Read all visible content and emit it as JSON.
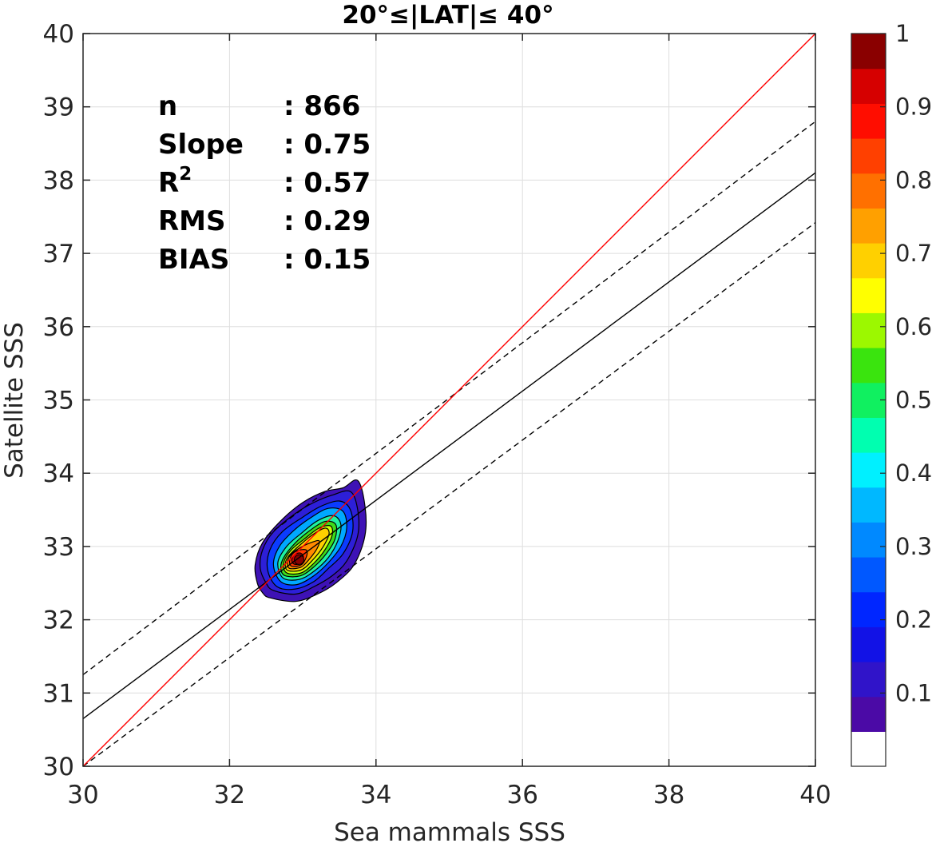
{
  "chart_data": {
    "type": "density contour scatter",
    "title": "20°≤|LAT|≤ 40°",
    "xlabel": "Sea mammals SSS",
    "ylabel": "Satellite SSS",
    "xlim": [
      30,
      40
    ],
    "ylim": [
      30,
      40
    ],
    "xticks": [
      "30",
      "32",
      "34",
      "36",
      "38",
      "40"
    ],
    "yticks": [
      "30",
      "31",
      "32",
      "33",
      "34",
      "35",
      "36",
      "37",
      "38",
      "39",
      "40"
    ],
    "grid": true,
    "stats": [
      {
        "label": "n",
        "value": ": 866"
      },
      {
        "label": "Slope",
        "value": ": 0.75"
      },
      {
        "label": "R",
        "sup": "2",
        "value": ": 0.57"
      },
      {
        "label": "RMS",
        "value": ": 0.29"
      },
      {
        "label": "BIAS",
        "value": ": 0.15"
      }
    ],
    "lines": {
      "one_to_one": {
        "color": "#ff0000",
        "x": [
          30,
          40
        ],
        "y": [
          30,
          40
        ]
      },
      "regression": {
        "color": "#000000",
        "style": "solid",
        "x": [
          30,
          40
        ],
        "y": [
          30.65,
          38.1
        ]
      },
      "upper_bound": {
        "color": "#000000",
        "style": "dashed",
        "x": [
          30,
          40
        ],
        "y": [
          31.25,
          38.8
        ]
      },
      "lower_bound": {
        "color": "#000000",
        "style": "dashed",
        "x": [
          30,
          40
        ],
        "y": [
          30.0,
          37.42
        ]
      }
    },
    "density": {
      "center": [
        32.95,
        32.82
      ],
      "peak_level": 1.0,
      "levels": [
        {
          "level": 0.05,
          "color": "#3e12b5",
          "points": [
            [
              32.55,
              32.3
            ],
            [
              32.9,
              32.25
            ],
            [
              33.2,
              32.35
            ],
            [
              33.45,
              32.5
            ],
            [
              33.7,
              32.75
            ],
            [
              33.85,
              33.15
            ],
            [
              33.85,
              33.55
            ],
            [
              33.75,
              33.9
            ],
            [
              33.55,
              33.8
            ],
            [
              33.3,
              33.75
            ],
            [
              33.0,
              33.6
            ],
            [
              32.7,
              33.35
            ],
            [
              32.45,
              33.05
            ],
            [
              32.35,
              32.75
            ],
            [
              32.38,
              32.5
            ],
            [
              32.45,
              32.37
            ]
          ]
        },
        {
          "level": 0.15,
          "color": "#2d1fd8",
          "points": [
            [
              32.6,
              32.4
            ],
            [
              32.9,
              32.35
            ],
            [
              33.15,
              32.45
            ],
            [
              33.4,
              32.6
            ],
            [
              33.6,
              32.8
            ],
            [
              33.75,
              33.15
            ],
            [
              33.75,
              33.5
            ],
            [
              33.65,
              33.75
            ],
            [
              33.4,
              33.7
            ],
            [
              33.15,
              33.6
            ],
            [
              32.9,
              33.45
            ],
            [
              32.6,
              33.2
            ],
            [
              32.45,
              32.95
            ],
            [
              32.42,
              32.7
            ],
            [
              32.5,
              32.5
            ]
          ]
        },
        {
          "level": 0.25,
          "color": "#0b3cff",
          "points": [
            [
              32.65,
              32.45
            ],
            [
              32.9,
              32.42
            ],
            [
              33.15,
              32.52
            ],
            [
              33.35,
              32.7
            ],
            [
              33.55,
              32.9
            ],
            [
              33.68,
              33.2
            ],
            [
              33.65,
              33.5
            ],
            [
              33.5,
              33.62
            ],
            [
              33.25,
              33.55
            ],
            [
              33.0,
              33.4
            ],
            [
              32.72,
              33.2
            ],
            [
              32.55,
              32.95
            ],
            [
              32.52,
              32.68
            ]
          ]
        },
        {
          "level": 0.35,
          "color": "#00a8ff",
          "points": [
            [
              32.7,
              32.52
            ],
            [
              32.92,
              32.48
            ],
            [
              33.15,
              32.6
            ],
            [
              33.35,
              32.78
            ],
            [
              33.52,
              33.0
            ],
            [
              33.6,
              33.25
            ],
            [
              33.55,
              33.48
            ],
            [
              33.35,
              33.52
            ],
            [
              33.12,
              33.4
            ],
            [
              32.88,
              33.22
            ],
            [
              32.68,
              33.0
            ],
            [
              32.6,
              32.75
            ]
          ]
        },
        {
          "level": 0.45,
          "color": "#1ff2a0",
          "points": [
            [
              32.73,
              32.57
            ],
            [
              32.95,
              32.55
            ],
            [
              33.15,
              32.66
            ],
            [
              33.35,
              32.85
            ],
            [
              33.48,
              33.08
            ],
            [
              33.52,
              33.3
            ],
            [
              33.42,
              33.42
            ],
            [
              33.2,
              33.35
            ],
            [
              32.98,
              33.18
            ],
            [
              32.78,
              33.0
            ],
            [
              32.66,
              32.78
            ]
          ]
        },
        {
          "level": 0.55,
          "color": "#3ddc1a",
          "points": [
            [
              32.76,
              32.6
            ],
            [
              32.97,
              32.6
            ],
            [
              33.15,
              32.72
            ],
            [
              33.32,
              32.9
            ],
            [
              33.44,
              33.1
            ],
            [
              33.45,
              33.3
            ],
            [
              33.3,
              33.34
            ],
            [
              33.1,
              33.22
            ],
            [
              32.9,
              33.05
            ],
            [
              32.74,
              32.85
            ],
            [
              32.7,
              32.7
            ]
          ]
        },
        {
          "level": 0.65,
          "color": "#c9ff0a",
          "points": [
            [
              32.78,
              32.64
            ],
            [
              32.98,
              32.64
            ],
            [
              33.15,
              32.77
            ],
            [
              33.3,
              32.95
            ],
            [
              33.4,
              33.15
            ],
            [
              33.38,
              33.28
            ],
            [
              33.22,
              33.25
            ],
            [
              33.02,
              33.1
            ],
            [
              32.84,
              32.95
            ],
            [
              32.74,
              32.78
            ]
          ]
        },
        {
          "level": 0.72,
          "color": "#ffd000",
          "points": [
            [
              32.8,
              32.67
            ],
            [
              32.98,
              32.68
            ],
            [
              33.14,
              32.82
            ],
            [
              33.28,
              33.0
            ],
            [
              33.36,
              33.18
            ],
            [
              33.3,
              33.25
            ],
            [
              33.12,
              33.15
            ],
            [
              32.94,
              33.0
            ],
            [
              32.8,
              32.86
            ],
            [
              32.76,
              32.75
            ]
          ]
        },
        {
          "level": 0.8,
          "color": "#ff8a00",
          "points": [
            [
              32.82,
              32.7
            ],
            [
              32.98,
              32.72
            ],
            [
              33.1,
              32.84
            ],
            [
              33.2,
              32.98
            ],
            [
              33.22,
              33.08
            ],
            [
              33.08,
              33.04
            ],
            [
              32.94,
              32.97
            ],
            [
              32.83,
              32.88
            ],
            [
              32.79,
              32.78
            ]
          ]
        },
        {
          "level": 0.87,
          "color": "#ff3800",
          "points": [
            [
              32.85,
              32.73
            ],
            [
              32.98,
              32.75
            ],
            [
              33.05,
              32.86
            ],
            [
              33.05,
              32.95
            ],
            [
              32.95,
              32.95
            ],
            [
              32.86,
              32.9
            ],
            [
              32.82,
              32.8
            ]
          ]
        },
        {
          "level": 0.95,
          "color": "#c40000",
          "points": [
            [
              32.88,
              32.76
            ],
            [
              32.98,
              32.77
            ],
            [
              33.01,
              32.85
            ],
            [
              32.97,
              32.91
            ],
            [
              32.89,
              32.89
            ],
            [
              32.85,
              32.82
            ]
          ]
        }
      ]
    },
    "colorbar": {
      "range": [
        0,
        1
      ],
      "ticks": [
        "0.1",
        "0.2",
        "0.3",
        "0.4",
        "0.5",
        "0.6",
        "0.7",
        "0.8",
        "0.9",
        "1"
      ],
      "colors": [
        "#ffffff",
        "#4b0aa6",
        "#3014c9",
        "#1212e6",
        "#0026ff",
        "#0058ff",
        "#0089ff",
        "#00b8ff",
        "#00f0ff",
        "#00ffb0",
        "#10f060",
        "#3ae40e",
        "#9cf800",
        "#ffff00",
        "#ffd000",
        "#ffa000",
        "#ff7000",
        "#ff4000",
        "#ff0d00",
        "#d60000",
        "#8a0000"
      ]
    }
  }
}
